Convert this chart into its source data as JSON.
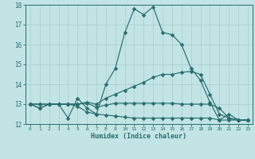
{
  "xlabel": "Humidex (Indice chaleur)",
  "xlim": [
    -0.5,
    23.5
  ],
  "ylim": [
    12,
    18
  ],
  "yticks": [
    12,
    13,
    14,
    15,
    16,
    17,
    18
  ],
  "xticks": [
    0,
    1,
    2,
    3,
    4,
    5,
    6,
    7,
    8,
    9,
    10,
    11,
    12,
    13,
    14,
    15,
    16,
    17,
    18,
    19,
    20,
    21,
    22,
    23
  ],
  "bg_color": "#c2e4e4",
  "grid_color": "#a8cece",
  "line_color": "#2a6e6e",
  "line1_y": [
    13.0,
    12.8,
    13.0,
    13.0,
    12.3,
    13.3,
    12.8,
    12.5,
    14.0,
    14.8,
    16.6,
    17.8,
    17.5,
    17.9,
    16.6,
    16.5,
    16.0,
    14.8,
    14.2,
    13.1,
    12.2,
    12.5,
    12.2,
    12.2
  ],
  "line2_y": [
    13.0,
    13.0,
    13.0,
    13.0,
    13.0,
    13.0,
    13.1,
    13.0,
    13.3,
    13.5,
    13.7,
    13.9,
    14.1,
    14.35,
    14.5,
    14.5,
    14.6,
    14.65,
    14.5,
    13.5,
    12.5,
    12.3,
    12.2,
    12.2
  ],
  "line3_y": [
    13.0,
    13.0,
    13.0,
    13.0,
    13.0,
    13.0,
    13.05,
    12.85,
    12.95,
    13.05,
    13.05,
    13.05,
    13.05,
    13.05,
    13.05,
    13.05,
    13.0,
    13.0,
    13.0,
    13.0,
    12.8,
    12.3,
    12.2,
    12.2
  ],
  "line4_y": [
    13.0,
    12.8,
    13.0,
    13.0,
    13.0,
    12.9,
    12.6,
    12.5,
    12.45,
    12.4,
    12.35,
    12.3,
    12.3,
    12.3,
    12.3,
    12.3,
    12.3,
    12.3,
    12.3,
    12.3,
    12.2,
    12.2,
    12.2,
    12.2
  ]
}
